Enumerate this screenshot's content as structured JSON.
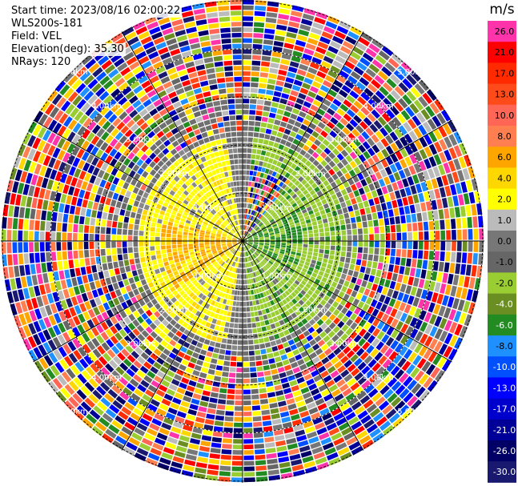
{
  "header": {
    "start_time": "Start time: 2023/08/16 02:00:22",
    "instrument": "WLS200s-181",
    "field": "Field: VEL",
    "elevation": "Elevation(deg): 35.30",
    "nrays": "NRays: 120"
  },
  "chart_data": {
    "type": "heatmap",
    "projection": "polar-ppi",
    "field": "VEL",
    "nrays": 120,
    "range_rings_km": [
      "1.00km",
      "2.00km",
      "3.00km",
      "4.00km",
      "5.00km"
    ],
    "colorbar": {
      "unit": "m/s",
      "ticks": [
        "26.0",
        "21.0",
        "17.0",
        "13.0",
        "10.0",
        "8.0",
        "6.0",
        "4.0",
        "2.0",
        "1.0",
        "0.0",
        "-1.0",
        "-2.0",
        "-4.0",
        "-6.0",
        "-8.0",
        "-10.0",
        "-13.0",
        "-17.0",
        "-21.0",
        "-26.0",
        "-30.0"
      ],
      "colors": [
        "#ff33aa",
        "#ff0000",
        "#ff2a00",
        "#ff4a1a",
        "#ff6655",
        "#ff7f50",
        "#ffa500",
        "#ffd700",
        "#ffff00",
        "#bbbbbb",
        "#777777",
        "#666666",
        "#9acd32",
        "#6b8e23",
        "#228b22",
        "#1e90ff",
        "#0050ff",
        "#0000ff",
        "#0000cd",
        "#000099",
        "#000066",
        "#191970"
      ]
    },
    "near_field_pattern": {
      "west_sector": "positive (yellow/orange)",
      "east_sector": "negative (green)",
      "far_field": "noise"
    }
  }
}
